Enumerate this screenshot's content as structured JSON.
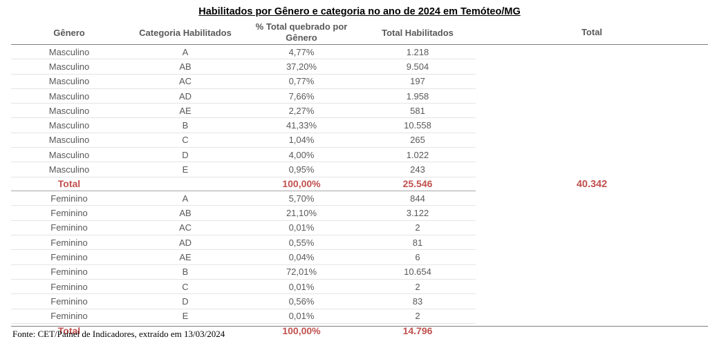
{
  "title": "Habilitados por Gênero e categoria no ano de 2024 em Temóteo/MG",
  "headers": {
    "genero": "Gênero",
    "categoria": "Categoria Habilitados",
    "pct_line1": "% Total quebrado por",
    "pct_line2": "Gênero",
    "total_habilitados": "Total Habilitados",
    "total": "Total"
  },
  "groups": [
    {
      "rows": [
        {
          "genero": "Masculino",
          "categoria": "A",
          "pct": "4,77%",
          "total": "1.218"
        },
        {
          "genero": "Masculino",
          "categoria": "AB",
          "pct": "37,20%",
          "total": "9.504"
        },
        {
          "genero": "Masculino",
          "categoria": "AC",
          "pct": "0,77%",
          "total": "197"
        },
        {
          "genero": "Masculino",
          "categoria": "AD",
          "pct": "7,66%",
          "total": "1.958"
        },
        {
          "genero": "Masculino",
          "categoria": "AE",
          "pct": "2,27%",
          "total": "581"
        },
        {
          "genero": "Masculino",
          "categoria": "B",
          "pct": "41,33%",
          "total": "10.558"
        },
        {
          "genero": "Masculino",
          "categoria": "C",
          "pct": "1,04%",
          "total": "265"
        },
        {
          "genero": "Masculino",
          "categoria": "D",
          "pct": "4,00%",
          "total": "1.022"
        },
        {
          "genero": "Masculino",
          "categoria": "E",
          "pct": "0,95%",
          "total": "243"
        }
      ],
      "total_label": "Total",
      "total_pct": "100,00%",
      "total_value": "25.546"
    },
    {
      "rows": [
        {
          "genero": "Feminino",
          "categoria": "A",
          "pct": "5,70%",
          "total": "844"
        },
        {
          "genero": "Feminino",
          "categoria": "AB",
          "pct": "21,10%",
          "total": "3.122"
        },
        {
          "genero": "Feminino",
          "categoria": "AC",
          "pct": "0,01%",
          "total": "2"
        },
        {
          "genero": "Feminino",
          "categoria": "AD",
          "pct": "0,55%",
          "total": "81"
        },
        {
          "genero": "Feminino",
          "categoria": "AE",
          "pct": "0,04%",
          "total": "6"
        },
        {
          "genero": "Feminino",
          "categoria": "B",
          "pct": "72,01%",
          "total": "10.654"
        },
        {
          "genero": "Feminino",
          "categoria": "C",
          "pct": "0,01%",
          "total": "2"
        },
        {
          "genero": "Feminino",
          "categoria": "D",
          "pct": "0,56%",
          "total": "83"
        },
        {
          "genero": "Feminino",
          "categoria": "E",
          "pct": "0,01%",
          "total": "2"
        }
      ],
      "total_label": "Total",
      "total_pct": "100,00%",
      "total_value": "14.796"
    }
  ],
  "grand_total": "40.342",
  "source": "Fonte: CET/Painel de Indicadores, extraído em 13/03/2024",
  "colors": {
    "total_text": "#c0504d",
    "body_text": "#595959",
    "rule": "#7f7f7f"
  }
}
